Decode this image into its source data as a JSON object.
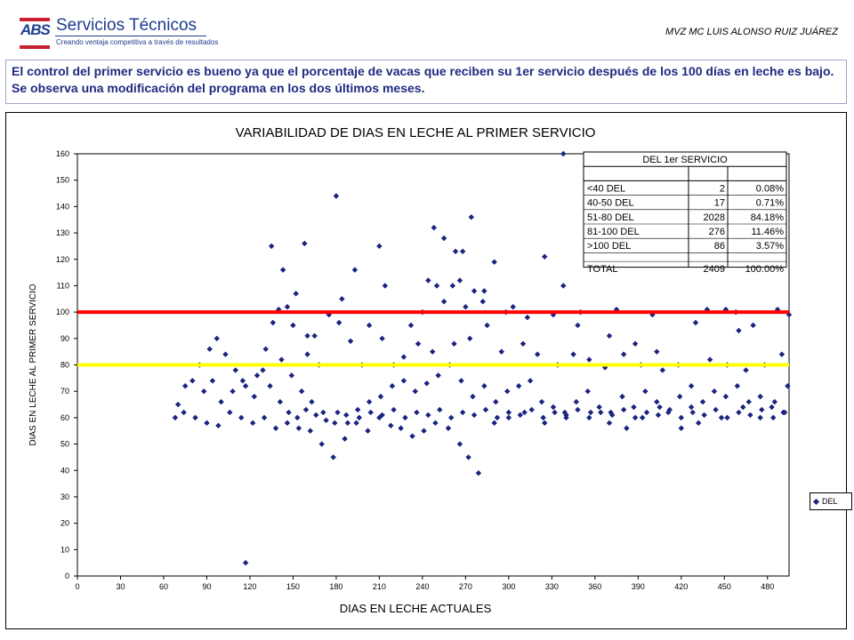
{
  "header": {
    "logo_mark": "ABS",
    "logo_name": "Servicios Técnicos",
    "logo_slogan": "Creando ventaja competitiva a través de resultados",
    "author": "MVZ MC LUIS ALONSO RUIZ JUÁREZ",
    "headline": "El control del primer servicio es bueno ya que el porcentaje de vacas que reciben su 1er servicio después de los 100 días en leche es bajo. Se observa una modificación del programa en los dos últimos meses."
  },
  "colors": {
    "marker": "#1a237e",
    "line_100": "#ff0000",
    "line_80": "#ffff00",
    "text": "#1f2a80"
  },
  "chart_data": {
    "type": "scatter",
    "title": "VARIABILIDAD DE DIAS EN LECHE AL PRIMER SERVICIO",
    "xlabel": "DIAS EN LECHE ACTUALES",
    "ylabel": "DIAS EN LECHE AL PRIMER SERVICIO",
    "xlim": [
      0,
      495
    ],
    "ylim": [
      0,
      160
    ],
    "xticks": [
      0,
      30,
      60,
      90,
      120,
      150,
      180,
      210,
      240,
      270,
      300,
      330,
      360,
      390,
      420,
      450,
      480
    ],
    "yticks": [
      0,
      10,
      20,
      30,
      40,
      50,
      60,
      70,
      80,
      90,
      100,
      110,
      120,
      130,
      140,
      150,
      160
    ],
    "legend": {
      "position": "right",
      "entries": [
        "DEL"
      ]
    },
    "reference_lines": [
      {
        "y": 100,
        "color": "#ff0000"
      },
      {
        "y": 80,
        "color": "#ffff00"
      }
    ],
    "series": [
      {
        "name": "DEL",
        "points": [
          [
            117,
            5
          ],
          [
            338,
            160
          ],
          [
            180,
            144
          ],
          [
            135,
            125
          ],
          [
            158,
            126
          ],
          [
            248,
            132
          ],
          [
            255,
            128
          ],
          [
            263,
            123
          ],
          [
            268,
            123
          ],
          [
            274,
            136
          ],
          [
            210,
            125
          ],
          [
            193,
            116
          ],
          [
            152,
            107
          ],
          [
            165,
            91
          ],
          [
            146,
            102
          ],
          [
            160,
            91
          ],
          [
            182,
            96
          ],
          [
            190,
            89
          ],
          [
            198,
            80
          ],
          [
            214,
            110
          ],
          [
            240,
            100
          ],
          [
            250,
            110
          ],
          [
            261,
            110
          ],
          [
            266,
            112
          ],
          [
            276,
            108
          ],
          [
            283,
            108
          ],
          [
            290,
            119
          ],
          [
            303,
            102
          ],
          [
            325,
            121
          ],
          [
            338,
            110
          ],
          [
            350,
            100
          ],
          [
            375,
            101
          ],
          [
            400,
            99
          ],
          [
            438,
            101
          ],
          [
            451,
            101
          ],
          [
            458,
            100
          ],
          [
            487,
            101
          ],
          [
            495,
            99
          ],
          [
            470,
            95
          ],
          [
            460,
            93
          ],
          [
            430,
            96
          ],
          [
            403,
            85
          ],
          [
            388,
            88
          ],
          [
            370,
            91
          ],
          [
            348,
            95
          ],
          [
            331,
            99
          ],
          [
            313,
            98
          ],
          [
            298,
            100
          ],
          [
            244,
            112
          ],
          [
            255,
            104
          ],
          [
            270,
            102
          ],
          [
            282,
            104
          ],
          [
            232,
            95
          ],
          [
            227,
            83
          ],
          [
            220,
            80
          ],
          [
            140,
            101
          ],
          [
            143,
            116
          ],
          [
            150,
            95
          ],
          [
            160,
            84
          ],
          [
            168,
            80
          ],
          [
            175,
            99
          ],
          [
            184,
            105
          ],
          [
            203,
            95
          ],
          [
            212,
            90
          ],
          [
            237,
            88
          ],
          [
            247,
            85
          ],
          [
            262,
            88
          ],
          [
            273,
            90
          ],
          [
            285,
            95
          ],
          [
            295,
            85
          ],
          [
            310,
            88
          ],
          [
            320,
            84
          ],
          [
            334,
            80
          ],
          [
            345,
            84
          ],
          [
            356,
            82
          ],
          [
            367,
            79
          ],
          [
            380,
            84
          ],
          [
            392,
            80
          ],
          [
            407,
            78
          ],
          [
            418,
            80
          ],
          [
            427,
            72
          ],
          [
            440,
            82
          ],
          [
            452,
            80
          ],
          [
            465,
            78
          ],
          [
            478,
            80
          ],
          [
            490,
            84
          ],
          [
            494,
            72
          ],
          [
            485,
            66
          ],
          [
            475,
            60
          ],
          [
            463,
            64
          ],
          [
            448,
            60
          ],
          [
            432,
            58
          ],
          [
            420,
            56
          ],
          [
            405,
            64
          ],
          [
            393,
            60
          ],
          [
            382,
            56
          ],
          [
            370,
            58
          ],
          [
            357,
            62
          ],
          [
            340,
            60
          ],
          [
            325,
            58
          ],
          [
            311,
            62
          ],
          [
            300,
            60
          ],
          [
            290,
            58
          ],
          [
            279,
            39
          ],
          [
            272,
            45
          ],
          [
            266,
            50
          ],
          [
            258,
            56
          ],
          [
            249,
            58
          ],
          [
            241,
            55
          ],
          [
            233,
            53
          ],
          [
            225,
            56
          ],
          [
            218,
            57
          ],
          [
            210,
            60
          ],
          [
            202,
            55
          ],
          [
            194,
            58
          ],
          [
            186,
            52
          ],
          [
            178,
            45
          ],
          [
            170,
            50
          ],
          [
            162,
            55
          ],
          [
            154,
            56
          ],
          [
            146,
            58
          ],
          [
            138,
            56
          ],
          [
            130,
            60
          ],
          [
            122,
            58
          ],
          [
            114,
            60
          ],
          [
            106,
            62
          ],
          [
            98,
            57
          ],
          [
            90,
            58
          ],
          [
            82,
            60
          ],
          [
            74,
            62
          ],
          [
            68,
            60
          ],
          [
            70,
            65
          ],
          [
            75,
            72
          ],
          [
            80,
            74
          ],
          [
            85,
            80
          ],
          [
            92,
            86
          ],
          [
            97,
            90
          ],
          [
            103,
            84
          ],
          [
            110,
            78
          ],
          [
            117,
            72
          ],
          [
            125,
            76
          ],
          [
            131,
            86
          ],
          [
            136,
            96
          ],
          [
            142,
            82
          ],
          [
            149,
            76
          ],
          [
            156,
            70
          ],
          [
            163,
            66
          ],
          [
            171,
            62
          ],
          [
            179,
            58
          ],
          [
            187,
            61
          ],
          [
            195,
            63
          ],
          [
            203,
            66
          ],
          [
            211,
            68
          ],
          [
            219,
            72
          ],
          [
            227,
            74
          ],
          [
            235,
            70
          ],
          [
            243,
            73
          ],
          [
            251,
            76
          ],
          [
            259,
            80
          ],
          [
            267,
            74
          ],
          [
            275,
            68
          ],
          [
            283,
            72
          ],
          [
            291,
            66
          ],
          [
            299,
            70
          ],
          [
            307,
            72
          ],
          [
            315,
            74
          ],
          [
            323,
            66
          ],
          [
            331,
            64
          ],
          [
            339,
            62
          ],
          [
            347,
            66
          ],
          [
            355,
            70
          ],
          [
            363,
            64
          ],
          [
            371,
            62
          ],
          [
            379,
            68
          ],
          [
            387,
            64
          ],
          [
            395,
            70
          ],
          [
            403,
            66
          ],
          [
            411,
            62
          ],
          [
            419,
            68
          ],
          [
            427,
            64
          ],
          [
            435,
            66
          ],
          [
            443,
            70
          ],
          [
            451,
            68
          ],
          [
            459,
            72
          ],
          [
            467,
            66
          ],
          [
            475,
            68
          ],
          [
            483,
            64
          ],
          [
            491,
            62
          ],
          [
            88,
            70
          ],
          [
            94,
            74
          ],
          [
            100,
            66
          ],
          [
            108,
            70
          ],
          [
            115,
            74
          ],
          [
            123,
            68
          ],
          [
            129,
            78
          ],
          [
            134,
            72
          ],
          [
            141,
            66
          ],
          [
            147,
            62
          ],
          [
            153,
            60
          ],
          [
            159,
            63
          ],
          [
            166,
            61
          ],
          [
            173,
            59
          ],
          [
            181,
            62
          ],
          [
            188,
            58
          ],
          [
            196,
            60
          ],
          [
            204,
            62
          ],
          [
            212,
            61
          ],
          [
            220,
            63
          ],
          [
            228,
            60
          ],
          [
            236,
            62
          ],
          [
            244,
            61
          ],
          [
            252,
            63
          ],
          [
            260,
            60
          ],
          [
            268,
            62
          ],
          [
            276,
            61
          ],
          [
            284,
            63
          ],
          [
            292,
            60
          ],
          [
            300,
            62
          ],
          [
            308,
            61
          ],
          [
            316,
            63
          ],
          [
            324,
            60
          ],
          [
            332,
            62
          ],
          [
            340,
            61
          ],
          [
            348,
            63
          ],
          [
            356,
            60
          ],
          [
            364,
            62
          ],
          [
            372,
            61
          ],
          [
            380,
            63
          ],
          [
            388,
            60
          ],
          [
            396,
            62
          ],
          [
            404,
            61
          ],
          [
            412,
            63
          ],
          [
            420,
            60
          ],
          [
            428,
            62
          ],
          [
            436,
            61
          ],
          [
            444,
            63
          ],
          [
            452,
            60
          ],
          [
            460,
            62
          ],
          [
            468,
            61
          ],
          [
            476,
            63
          ],
          [
            484,
            60
          ],
          [
            492,
            62
          ]
        ]
      }
    ]
  },
  "table": {
    "title": "DEL 1er SERVICIO",
    "rows": [
      {
        "label": "<40 DEL",
        "count": "2",
        "pct": "0.08%"
      },
      {
        "label": "40-50 DEL",
        "count": "17",
        "pct": "0.71%"
      },
      {
        "label": "51-80 DEL",
        "count": "2028",
        "pct": "84.18%"
      },
      {
        "label": "81-100 DEL",
        "count": "276",
        "pct": "11.46%"
      },
      {
        "label": ">100 DEL",
        "count": "86",
        "pct": "3.57%"
      }
    ],
    "total": {
      "label": "TOTAL",
      "count": "2409",
      "pct": "100.00%"
    }
  }
}
